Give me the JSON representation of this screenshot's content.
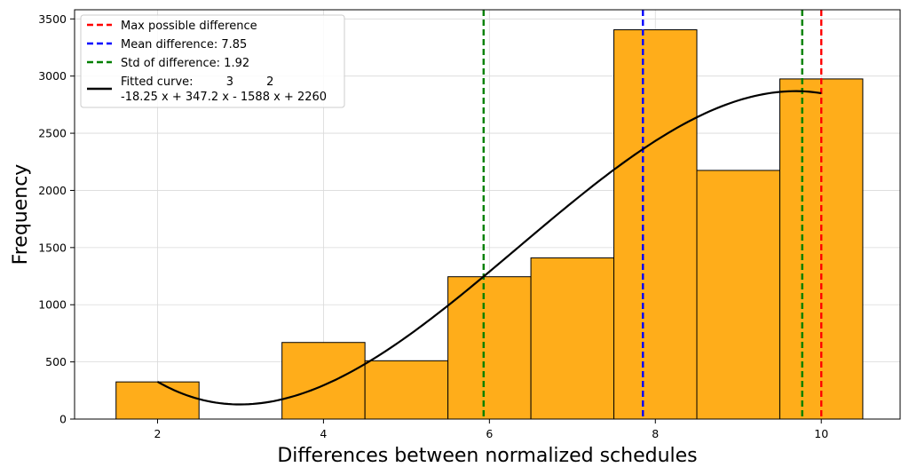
{
  "chart_data": {
    "type": "bar",
    "xlabel": "Differences between normalized schedules",
    "ylabel": "Frequency",
    "xlim": [
      1.0,
      10.95
    ],
    "ylim": [
      0,
      3580
    ],
    "xticks": [
      2,
      4,
      6,
      8,
      10
    ],
    "yticks": [
      0,
      500,
      1000,
      1500,
      2000,
      2500,
      3000,
      3500
    ],
    "grid": true,
    "legend_position": "top-left",
    "bins": [
      {
        "x0": 1.5,
        "x1": 2.5,
        "value": 325
      },
      {
        "x0": 2.5,
        "x1": 3.5,
        "value": 0
      },
      {
        "x0": 3.5,
        "x1": 4.5,
        "value": 670
      },
      {
        "x0": 4.5,
        "x1": 5.5,
        "value": 510
      },
      {
        "x0": 5.5,
        "x1": 6.5,
        "value": 1245
      },
      {
        "x0": 6.5,
        "x1": 7.5,
        "value": 1410
      },
      {
        "x0": 7.5,
        "x1": 8.5,
        "value": 3405
      },
      {
        "x0": 8.5,
        "x1": 9.5,
        "value": 2175
      },
      {
        "x0": 9.5,
        "x1": 10.5,
        "value": 2975
      }
    ],
    "bar_color": "#ffad1a",
    "vlines": [
      {
        "label": "Max possible difference",
        "x": 10.0,
        "color": "#ff0000"
      },
      {
        "label": "Mean difference: 7.85",
        "x": 7.85,
        "color": "#0000ff"
      },
      {
        "label": "Std of difference: 1.92",
        "x": 5.93,
        "x2": 9.77,
        "color": "#008000"
      }
    ],
    "fitted_curve": {
      "label_line1": "Fitted curve:         3         2",
      "label_line2": "-18.25 x + 347.2 x - 1588 x + 2260",
      "coefficients": [
        -18.25,
        347.2,
        -1588,
        2260
      ],
      "x_range": [
        2,
        10
      ],
      "color": "#000000"
    }
  }
}
